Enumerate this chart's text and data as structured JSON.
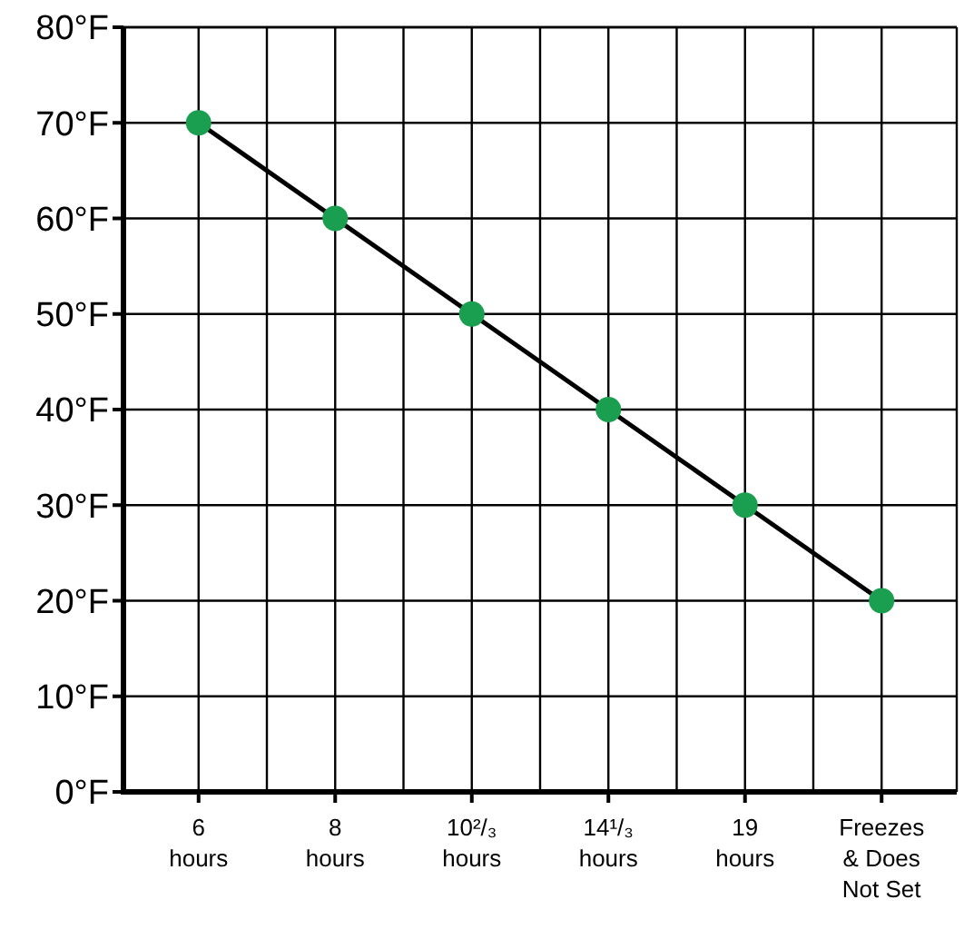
{
  "chart_data": {
    "type": "line",
    "categories": [
      "6\nhours",
      "8\nhours",
      "10²/₃\nhours",
      "14¹/₃\nhours",
      "19\nhours",
      "Freezes\n& Does\nNot Set"
    ],
    "series": [
      {
        "color": "#1a9e50",
        "values": [
          70,
          60,
          50,
          40,
          30,
          20
        ]
      }
    ],
    "ylim": [
      0,
      80
    ],
    "yticks": [
      {
        "value": 0,
        "label": "0°F"
      },
      {
        "value": 10,
        "label": "10°F"
      },
      {
        "value": 20,
        "label": "20°F"
      },
      {
        "value": 30,
        "label": "30°F"
      },
      {
        "value": 40,
        "label": "40°F"
      },
      {
        "value": 50,
        "label": "50°F"
      },
      {
        "value": 60,
        "label": "60°F"
      },
      {
        "value": 70,
        "label": "70°F"
      },
      {
        "value": 80,
        "label": "80°F"
      }
    ],
    "grid": true,
    "marker": "circle",
    "line_style": "solid"
  }
}
